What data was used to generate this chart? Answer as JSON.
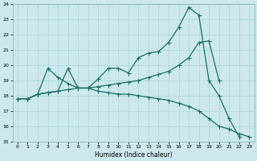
{
  "xlabel": "Humidex (Indice chaleur)",
  "bg_color": "#cce8ec",
  "grid_color": "#aad4d8",
  "line_color": "#1a6e6a",
  "xlim": [
    -0.5,
    23.5
  ],
  "ylim": [
    15,
    24
  ],
  "xticks": [
    0,
    1,
    2,
    3,
    4,
    5,
    6,
    7,
    8,
    9,
    10,
    11,
    12,
    13,
    14,
    15,
    16,
    17,
    18,
    19,
    20,
    21,
    22,
    23
  ],
  "yticks": [
    15,
    16,
    17,
    18,
    19,
    20,
    21,
    22,
    23,
    24
  ],
  "series": [
    {
      "x": [
        0,
        1,
        2,
        3,
        4,
        5,
        6,
        7,
        8,
        9,
        10,
        11,
        12,
        13,
        14,
        15,
        16,
        17,
        18,
        19,
        20,
        21,
        22
      ],
      "y": [
        17.8,
        17.8,
        18.1,
        18.2,
        18.3,
        19.8,
        18.5,
        18.5,
        19.1,
        19.8,
        19.8,
        19.5,
        20.5,
        20.8,
        20.9,
        21.5,
        22.5,
        23.8,
        23.3,
        19.0,
        18.0,
        16.5,
        15.3
      ]
    },
    {
      "x": [
        0,
        1,
        2,
        3,
        4,
        5,
        6,
        7,
        8,
        9,
        10,
        11,
        12,
        13,
        14,
        15,
        16,
        17,
        18,
        19,
        20,
        21,
        22,
        23
      ],
      "y": [
        17.8,
        17.8,
        18.1,
        19.8,
        19.2,
        18.8,
        18.5,
        18.5,
        18.3,
        18.2,
        18.1,
        18.1,
        18.0,
        17.9,
        17.8,
        17.7,
        17.5,
        17.3,
        17.0,
        16.5,
        16.0,
        15.8,
        15.5,
        15.3
      ]
    },
    {
      "x": [
        0,
        1,
        2,
        3,
        4,
        5,
        6,
        7,
        8,
        9,
        10,
        11,
        12,
        13,
        14,
        15,
        16,
        17,
        18,
        19,
        20
      ],
      "y": [
        17.8,
        17.8,
        18.1,
        18.2,
        18.3,
        18.4,
        18.5,
        18.5,
        18.6,
        18.7,
        18.8,
        18.9,
        19.0,
        19.2,
        19.4,
        19.6,
        20.0,
        20.5,
        21.5,
        21.6,
        19.0
      ]
    }
  ]
}
